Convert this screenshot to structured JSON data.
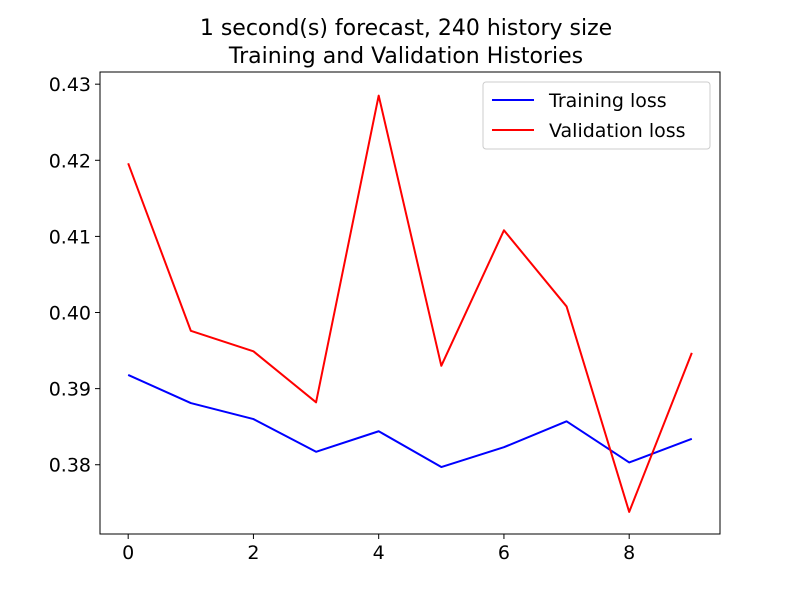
{
  "chart_data": {
    "type": "line",
    "title": "1 second(s) forecast, 240 history size\nTraining and Validation Histories",
    "title_lines": [
      "1 second(s) forecast, 240 history size",
      "Training and Validation Histories"
    ],
    "xlabel": "",
    "ylabel": "",
    "x": [
      0,
      1,
      2,
      3,
      4,
      5,
      6,
      7,
      8,
      9
    ],
    "xlim": [
      -0.45,
      9.45
    ],
    "ylim": [
      0.3709,
      0.4316
    ],
    "x_ticks": [
      0,
      2,
      4,
      6,
      8
    ],
    "x_tick_labels": [
      "0",
      "2",
      "4",
      "6",
      "8"
    ],
    "y_ticks": [
      0.38,
      0.39,
      0.4,
      0.41,
      0.42,
      0.43
    ],
    "y_tick_labels": [
      "0.38",
      "0.39",
      "0.40",
      "0.41",
      "0.42",
      "0.43"
    ],
    "grid": false,
    "legend_position": "top-right",
    "series": [
      {
        "name": "Training loss",
        "color": "#0000ff",
        "values": [
          0.3918,
          0.3881,
          0.386,
          0.3817,
          0.3844,
          0.3797,
          0.3823,
          0.3857,
          0.3803,
          0.3834
        ]
      },
      {
        "name": "Validation loss",
        "color": "#ff0000",
        "values": [
          0.4196,
          0.3976,
          0.3949,
          0.3882,
          0.4285,
          0.393,
          0.4108,
          0.4008,
          0.3738,
          0.3947
        ]
      }
    ]
  }
}
